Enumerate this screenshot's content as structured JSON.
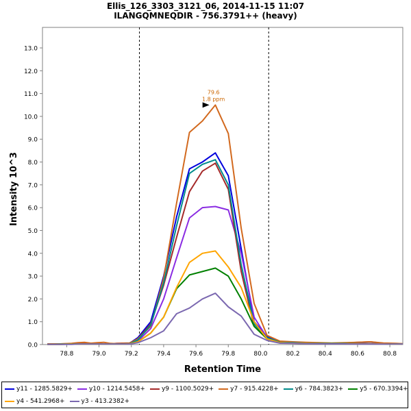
{
  "header": {
    "title_line1": "Ellis_126_3303_3121_06, 2014-11-15 11:07",
    "title_line2": "ILANGQMNEQDIR - 756.3791++ (heavy)"
  },
  "chart_data": {
    "type": "line",
    "xlabel": "Retention Time",
    "ylabel": "Intensity 10^3",
    "xlim": [
      78.65,
      80.88
    ],
    "ylim": [
      0,
      13.9
    ],
    "x_ticks": [
      "78.8",
      "79.0",
      "79.2",
      "79.4",
      "79.6",
      "79.8",
      "80.0",
      "80.2",
      "80.4",
      "80.6",
      "80.8"
    ],
    "y_ticks": [
      "0.0",
      "1.0",
      "2.0",
      "3.0",
      "4.0",
      "5.0",
      "6.0",
      "7.0",
      "8.0",
      "9.0",
      "10.0",
      "11.0",
      "12.0",
      "13.0"
    ],
    "vlines": [
      79.25,
      80.05
    ],
    "annotation": {
      "x": 79.7,
      "y": 10.5,
      "label_line1": "79.6",
      "label_line2": "1.8 ppm",
      "color": "#cc6600"
    },
    "x": [
      78.68,
      78.76,
      78.83,
      78.87,
      78.91,
      78.95,
      78.99,
      79.03,
      79.07,
      79.11,
      79.15,
      79.19,
      79.24,
      79.32,
      79.4,
      79.48,
      79.56,
      79.64,
      79.72,
      79.8,
      79.88,
      79.96,
      80.04,
      80.12,
      80.2,
      80.28,
      80.36,
      80.44,
      80.52,
      80.6,
      80.68,
      80.76,
      80.84,
      80.88
    ],
    "series": [
      {
        "name": "y11 - 1285.5829+",
        "color": "#0000dd",
        "values": [
          0.02,
          0.02,
          0.03,
          0.04,
          0.04,
          0.03,
          0.04,
          0.02,
          0.03,
          0.04,
          0.05,
          0.06,
          0.3,
          1.0,
          3.0,
          5.6,
          7.7,
          8.0,
          8.4,
          7.4,
          4.2,
          1.0,
          0.35,
          0.12,
          0.1,
          0.07,
          0.06,
          0.05,
          0.06,
          0.05,
          0.04,
          0.04,
          0.04,
          0.03
        ]
      },
      {
        "name": "y10 - 1214.5458+",
        "color": "#8a2be2",
        "values": [
          0.02,
          0.02,
          0.03,
          0.03,
          0.03,
          0.03,
          0.04,
          0.02,
          0.02,
          0.03,
          0.03,
          0.04,
          0.15,
          0.7,
          2.0,
          3.8,
          5.55,
          6.0,
          6.05,
          5.9,
          4.0,
          1.2,
          0.3,
          0.1,
          0.08,
          0.06,
          0.05,
          0.05,
          0.05,
          0.04,
          0.04,
          0.03,
          0.03,
          0.03
        ]
      },
      {
        "name": "y9 - 1100.5029+",
        "color": "#a52a2a",
        "values": [
          0.02,
          0.03,
          0.04,
          0.05,
          0.06,
          0.04,
          0.05,
          0.02,
          0.03,
          0.05,
          0.06,
          0.07,
          0.25,
          0.9,
          2.6,
          4.7,
          6.7,
          7.6,
          7.95,
          6.8,
          3.2,
          0.8,
          0.25,
          0.12,
          0.1,
          0.08,
          0.07,
          0.06,
          0.07,
          0.1,
          0.12,
          0.05,
          0.04,
          0.03
        ]
      },
      {
        "name": "y7 - 915.4228+",
        "color": "#d2691e",
        "values": [
          0.02,
          0.03,
          0.05,
          0.08,
          0.1,
          0.06,
          0.08,
          0.1,
          0.05,
          0.04,
          0.05,
          0.06,
          0.25,
          0.8,
          2.9,
          6.2,
          9.3,
          9.8,
          10.5,
          9.25,
          5.1,
          1.8,
          0.4,
          0.15,
          0.12,
          0.1,
          0.08,
          0.07,
          0.08,
          0.1,
          0.12,
          0.07,
          0.05,
          0.04
        ]
      },
      {
        "name": "y6 - 784.3823+",
        "color": "#008b8b",
        "values": [
          0.01,
          0.02,
          0.02,
          0.03,
          0.03,
          0.02,
          0.03,
          0.02,
          0.02,
          0.03,
          0.03,
          0.04,
          0.2,
          0.85,
          2.7,
          5.2,
          7.5,
          7.9,
          8.1,
          7.0,
          3.5,
          0.9,
          0.3,
          0.1,
          0.08,
          0.06,
          0.05,
          0.05,
          0.05,
          0.04,
          0.04,
          0.03,
          0.03,
          0.02
        ]
      },
      {
        "name": "y5 - 670.3394+",
        "color": "#008000",
        "values": [
          0.01,
          0.01,
          0.02,
          0.02,
          0.02,
          0.02,
          0.02,
          0.02,
          0.02,
          0.02,
          0.02,
          0.03,
          0.12,
          0.5,
          1.2,
          2.45,
          3.05,
          3.2,
          3.35,
          3.0,
          2.0,
          0.8,
          0.25,
          0.08,
          0.06,
          0.05,
          0.04,
          0.04,
          0.04,
          0.03,
          0.03,
          0.03,
          0.02,
          0.02
        ]
      },
      {
        "name": "y4 - 541.2968+",
        "color": "#ffa500",
        "values": [
          0.01,
          0.01,
          0.02,
          0.02,
          0.02,
          0.02,
          0.02,
          0.02,
          0.02,
          0.02,
          0.02,
          0.03,
          0.12,
          0.5,
          1.2,
          2.5,
          3.6,
          4.0,
          4.1,
          3.4,
          2.5,
          1.0,
          0.25,
          0.08,
          0.06,
          0.05,
          0.04,
          0.04,
          0.04,
          0.03,
          0.03,
          0.03,
          0.02,
          0.02
        ]
      },
      {
        "name": "y3 - 413.2382+",
        "color": "#7b68b0",
        "values": [
          0.01,
          0.01,
          0.01,
          0.02,
          0.02,
          0.02,
          0.02,
          0.02,
          0.02,
          0.02,
          0.02,
          0.02,
          0.08,
          0.3,
          0.6,
          1.35,
          1.6,
          2.0,
          2.25,
          1.65,
          1.25,
          0.45,
          0.18,
          0.06,
          0.05,
          0.04,
          0.03,
          0.03,
          0.03,
          0.02,
          0.02,
          0.02,
          0.02,
          0.02
        ]
      }
    ]
  }
}
